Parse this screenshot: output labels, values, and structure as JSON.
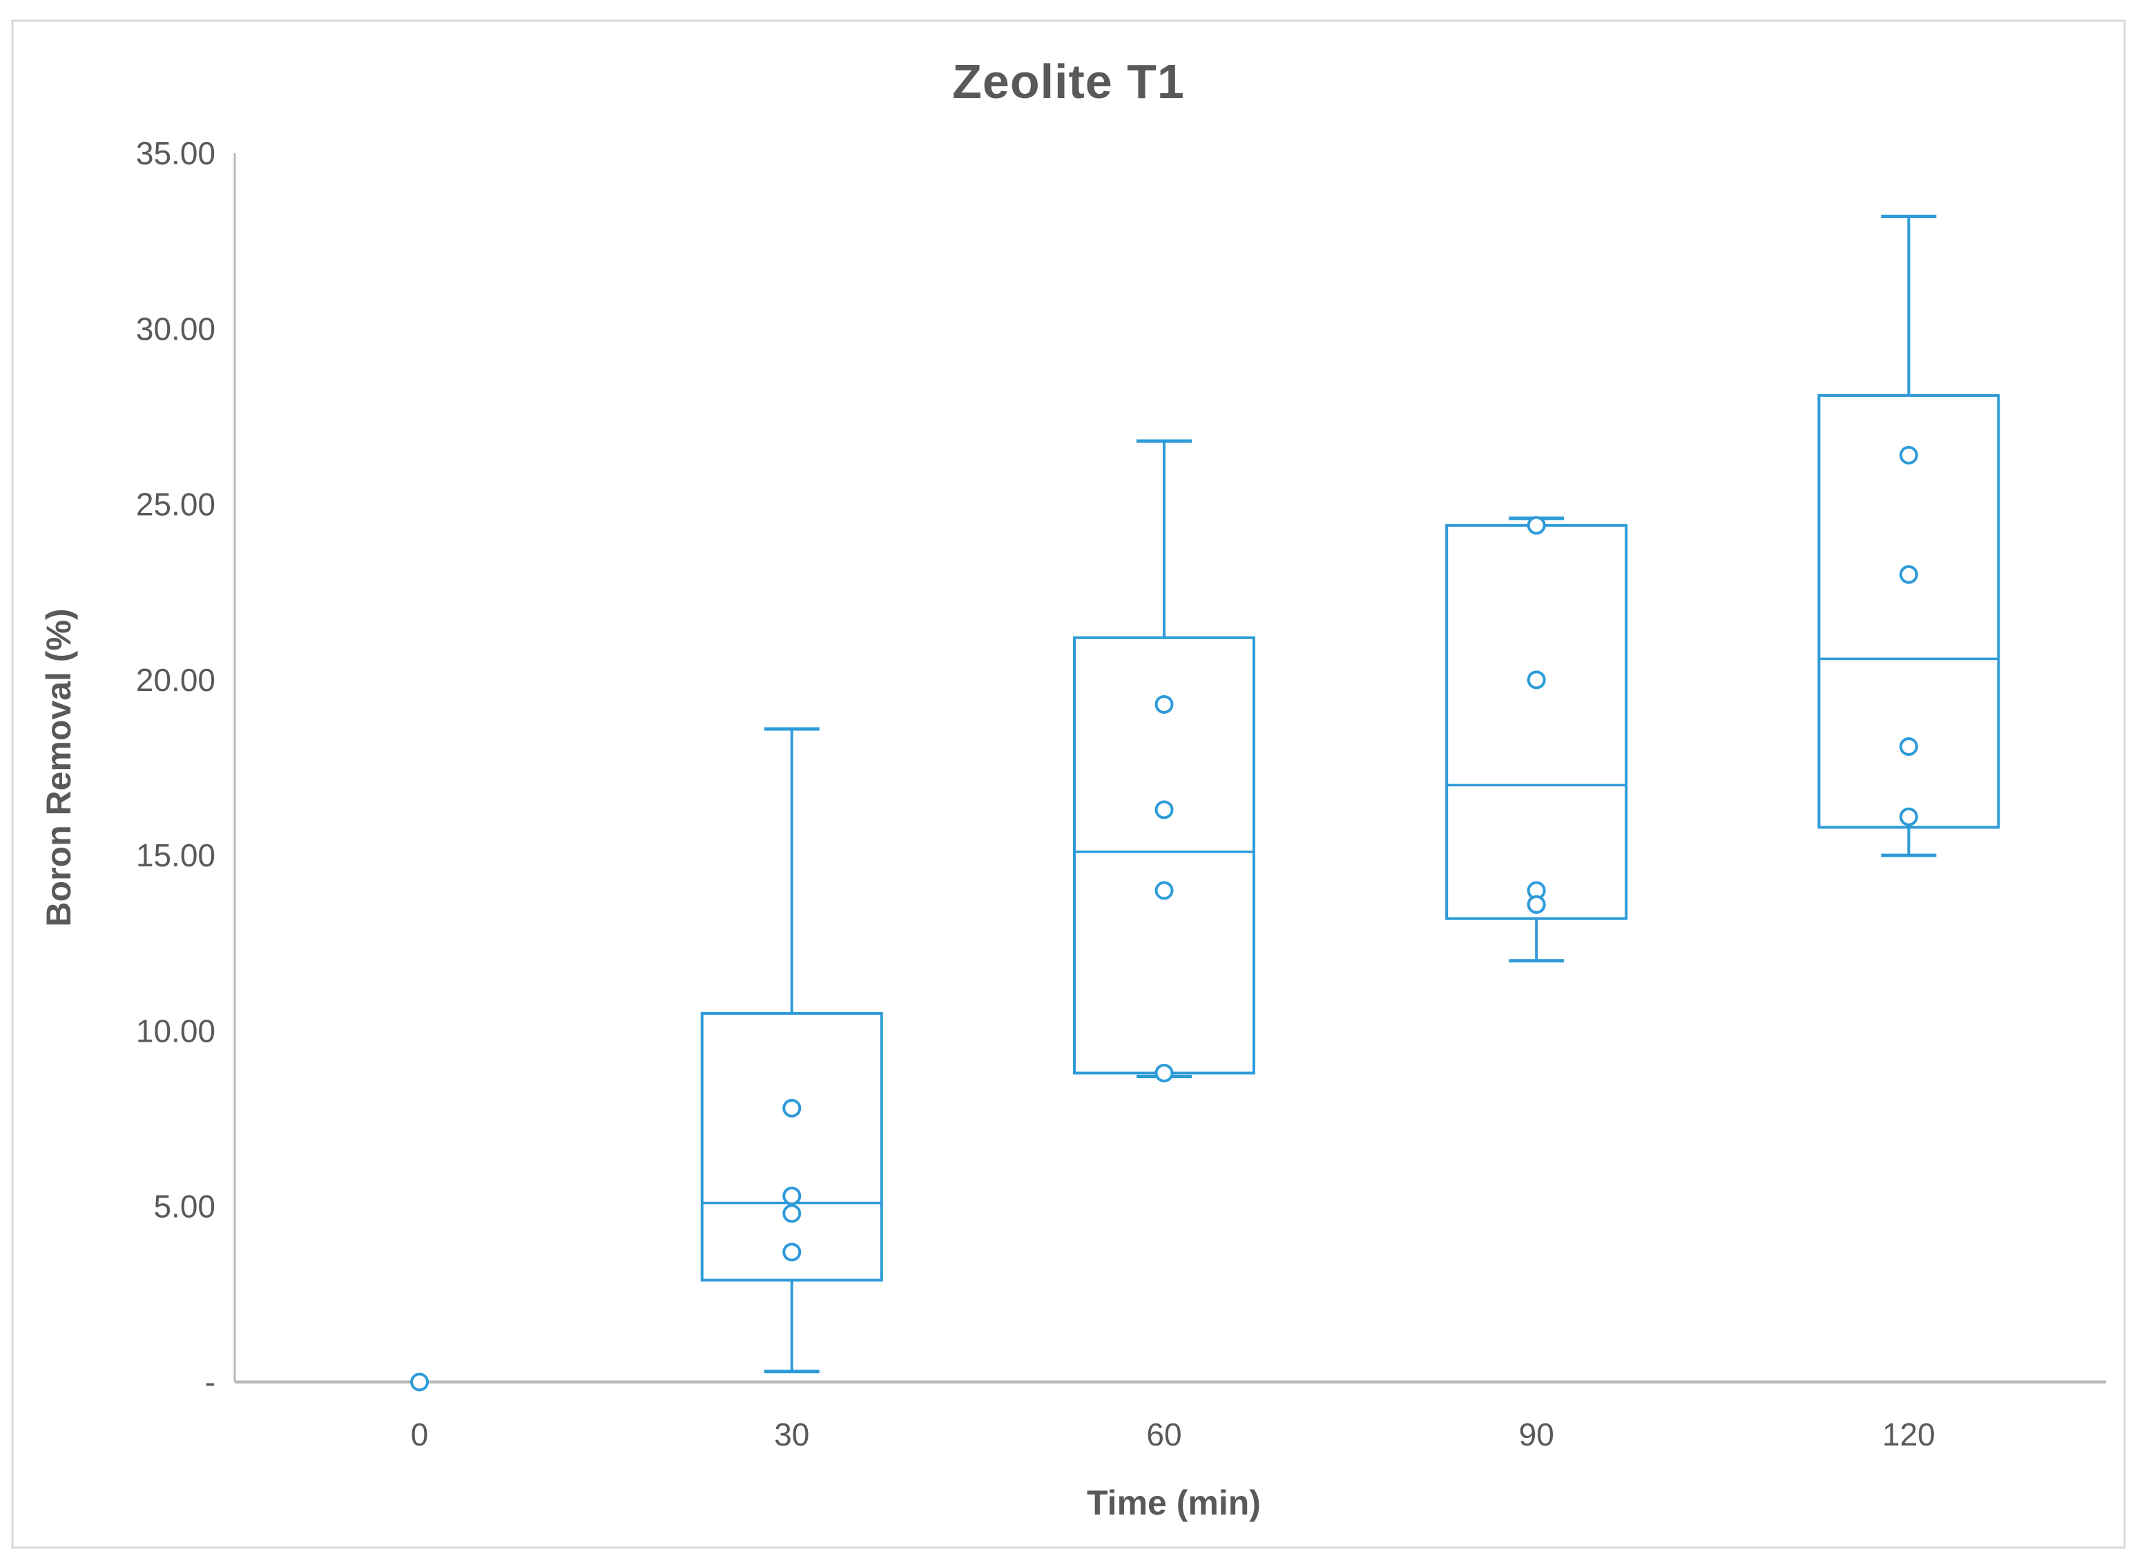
{
  "chart_data": {
    "type": "box",
    "title": "Zeolite T1",
    "xlabel": "Time (min)",
    "ylabel": "Boron Removal (%)",
    "ylim": [
      0,
      35
    ],
    "ytick_step": 5,
    "grid": false,
    "legend": false,
    "y_ticks": [
      {
        "value": 35,
        "label": "35.00"
      },
      {
        "value": 30,
        "label": "30.00"
      },
      {
        "value": 25,
        "label": "25.00"
      },
      {
        "value": 20,
        "label": "20.00"
      },
      {
        "value": 15,
        "label": "15.00"
      },
      {
        "value": 10,
        "label": "10.00"
      },
      {
        "value": 5,
        "label": "5.00"
      },
      {
        "value": 0,
        "label": "-"
      }
    ],
    "categories": [
      "0",
      "30",
      "60",
      "90",
      "120"
    ],
    "series": [
      {
        "category": "0",
        "box": null,
        "points": [
          0.0
        ]
      },
      {
        "category": "30",
        "box": {
          "min": 0.3,
          "q1": 2.9,
          "median": 5.1,
          "q3": 10.5,
          "max": 18.6
        },
        "points": [
          7.8,
          5.3,
          4.8,
          3.7
        ]
      },
      {
        "category": "60",
        "box": {
          "min": 8.7,
          "q1": 8.8,
          "median": 15.1,
          "q3": 21.2,
          "max": 26.8
        },
        "points": [
          19.3,
          16.3,
          14.0,
          8.8
        ]
      },
      {
        "category": "90",
        "box": {
          "min": 12.0,
          "q1": 13.2,
          "median": 17.0,
          "q3": 24.4,
          "max": 24.6
        },
        "points": [
          24.4,
          20.0,
          14.0,
          13.6
        ]
      },
      {
        "category": "120",
        "box": {
          "min": 15.0,
          "q1": 15.8,
          "median": 20.6,
          "q3": 28.1,
          "max": 33.2
        },
        "points": [
          26.4,
          23.0,
          18.1,
          16.1
        ]
      }
    ]
  },
  "colors": {
    "box_line": "#2E9BD8",
    "marker_fill": "#FFFFFF",
    "axis_line": "#B8B8B8",
    "border": "#D9D9D9",
    "text": "#595959",
    "background": "#FFFFFF"
  }
}
